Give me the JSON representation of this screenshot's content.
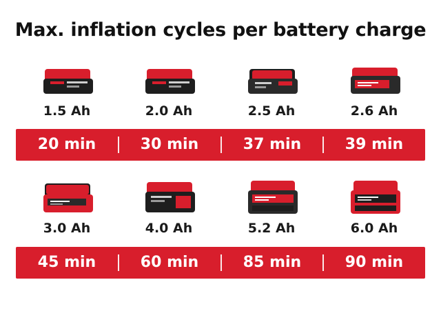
{
  "title": "Max. inflation cycles per battery charge",
  "colors": {
    "accent_red": "#d81e2c",
    "battery_black": "#1e1e1e",
    "text_dark": "#111111",
    "bar_text": "#ffffff"
  },
  "rows": [
    {
      "items": [
        {
          "capacity": "1.5 Ah",
          "time": "20 min",
          "icon": "battery-pack-slim-icon"
        },
        {
          "capacity": "2.0 Ah",
          "time": "30 min",
          "icon": "battery-pack-slim-icon"
        },
        {
          "capacity": "2.5 Ah",
          "time": "37 min",
          "icon": "battery-pack-slim-icon"
        },
        {
          "capacity": "2.6 Ah",
          "time": "39 min",
          "icon": "battery-pack-slim-icon"
        }
      ]
    },
    {
      "items": [
        {
          "capacity": "3.0 Ah",
          "time": "45 min",
          "icon": "battery-pack-icon"
        },
        {
          "capacity": "4.0 Ah",
          "time": "60 min",
          "icon": "battery-pack-icon"
        },
        {
          "capacity": "5.2 Ah",
          "time": "85 min",
          "icon": "battery-pack-large-icon"
        },
        {
          "capacity": "6.0 Ah",
          "time": "90 min",
          "icon": "battery-pack-large-icon"
        }
      ]
    }
  ]
}
